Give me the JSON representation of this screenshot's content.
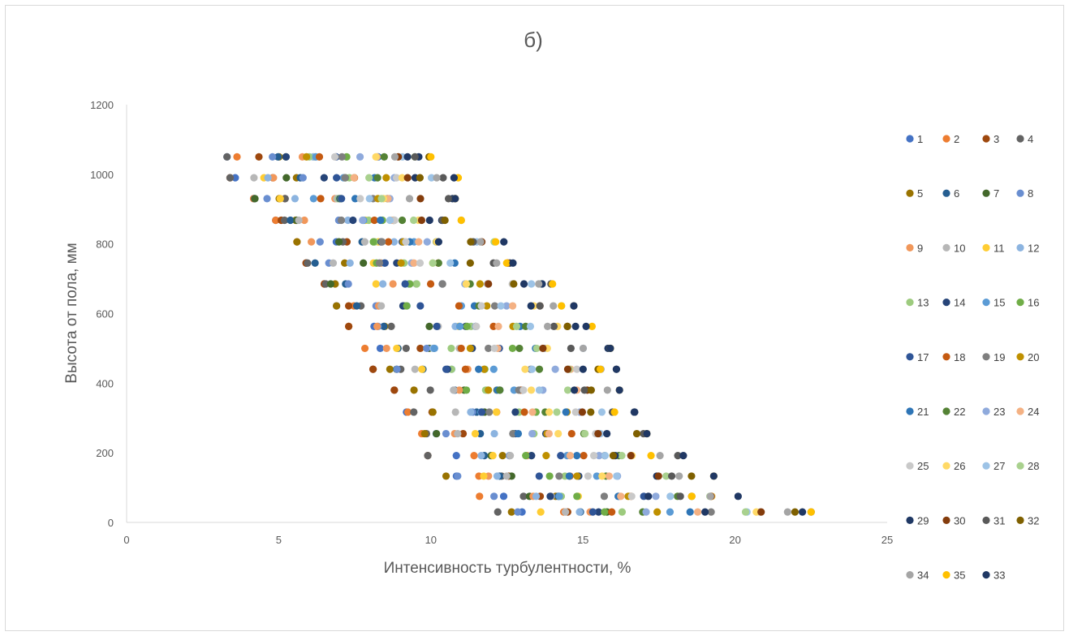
{
  "chart_data": {
    "type": "scatter",
    "title": "б)",
    "xlabel": "Интенсивность турбулентности, %",
    "ylabel": "Высота от пола, мм",
    "xlim": [
      0,
      25
    ],
    "ylim": [
      0,
      1200
    ],
    "xticks": [
      0,
      5,
      10,
      15,
      20,
      25
    ],
    "yticks": [
      0,
      200,
      400,
      600,
      800,
      1000,
      1200
    ],
    "grid": false,
    "legend_position": "right",
    "heights": [
      30,
      75,
      133,
      192,
      255,
      317,
      380,
      440,
      500,
      563,
      622,
      685,
      745,
      806,
      868,
      930,
      990,
      1050
    ],
    "row_ranges": [
      [
        12.2,
        22.5
      ],
      [
        11.6,
        20.1
      ],
      [
        10.5,
        19.3
      ],
      [
        9.9,
        18.3
      ],
      [
        9.7,
        17.1
      ],
      [
        9.2,
        16.7
      ],
      [
        8.8,
        16.2
      ],
      [
        8.1,
        16.1
      ],
      [
        7.8,
        15.9
      ],
      [
        7.3,
        15.3
      ],
      [
        6.9,
        14.7
      ],
      [
        6.5,
        14.0
      ],
      [
        5.9,
        12.7
      ],
      [
        5.6,
        12.4
      ],
      [
        4.9,
        11.0
      ],
      [
        4.1,
        10.8
      ],
      [
        3.4,
        10.9
      ],
      [
        3.3,
        10.0
      ]
    ],
    "series": [
      {
        "name": "1",
        "color": "#4472C4"
      },
      {
        "name": "2",
        "color": "#ED7D31"
      },
      {
        "name": "3",
        "color": "#9E480E"
      },
      {
        "name": "4",
        "color": "#636363"
      },
      {
        "name": "5",
        "color": "#997300"
      },
      {
        "name": "6",
        "color": "#255E91"
      },
      {
        "name": "7",
        "color": "#43682B"
      },
      {
        "name": "8",
        "color": "#698ED0"
      },
      {
        "name": "9",
        "color": "#F1975A"
      },
      {
        "name": "10",
        "color": "#B7B7B7"
      },
      {
        "name": "11",
        "color": "#FFCD33"
      },
      {
        "name": "12",
        "color": "#8CB4E0"
      },
      {
        "name": "13",
        "color": "#9DCB7E"
      },
      {
        "name": "14",
        "color": "#264478"
      },
      {
        "name": "15",
        "color": "#5B9BD5"
      },
      {
        "name": "16",
        "color": "#70AD47"
      },
      {
        "name": "17",
        "color": "#2F5597"
      },
      {
        "name": "18",
        "color": "#C55A11"
      },
      {
        "name": "19",
        "color": "#7F7F7F"
      },
      {
        "name": "20",
        "color": "#BF9000"
      },
      {
        "name": "21",
        "color": "#2E75B6"
      },
      {
        "name": "22",
        "color": "#548235"
      },
      {
        "name": "23",
        "color": "#8FAADC"
      },
      {
        "name": "24",
        "color": "#F4B183"
      },
      {
        "name": "25",
        "color": "#C9C9C9"
      },
      {
        "name": "26",
        "color": "#FFD966"
      },
      {
        "name": "27",
        "color": "#9DC3E6"
      },
      {
        "name": "28",
        "color": "#A9D18E"
      },
      {
        "name": "29",
        "color": "#1F3864"
      },
      {
        "name": "30",
        "color": "#843C0C"
      },
      {
        "name": "31",
        "color": "#595959"
      },
      {
        "name": "32",
        "color": "#7F6000"
      },
      {
        "name": "34",
        "color": "#A5A5A5"
      },
      {
        "name": "35",
        "color": "#FFC000"
      },
      {
        "name": "33",
        "color": "#203864"
      }
    ]
  }
}
